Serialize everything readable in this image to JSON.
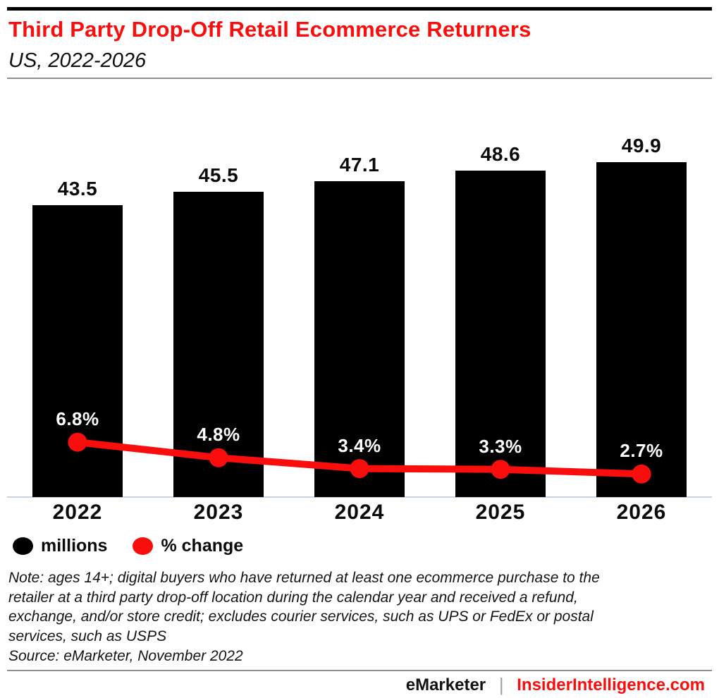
{
  "header": {
    "title": "Third Party Drop-Off Retail Ecommerce Returners",
    "subtitle": "US, 2022-2026"
  },
  "colors": {
    "accent_red": "#f90d0d",
    "bar_black": "#000000",
    "axis_line": "#c9d2df",
    "divider_gray": "#8f8f8f",
    "pipe_gray": "#a0a0a0"
  },
  "chart_data": {
    "type": "bar",
    "subtype": "bar with overlaid line (dual series)",
    "title": "Third Party Drop-Off Retail Ecommerce Returners",
    "subtitle": "US, 2022-2026",
    "categories": [
      "2022",
      "2023",
      "2024",
      "2025",
      "2026"
    ],
    "series": [
      {
        "name": "millions",
        "chart": "bar",
        "color": "#000000",
        "values": [
          43.5,
          45.5,
          47.1,
          48.6,
          49.9
        ],
        "labels": [
          "43.5",
          "45.5",
          "47.1",
          "48.6",
          "49.9"
        ]
      },
      {
        "name": "% change",
        "chart": "line",
        "color": "#f90d0d",
        "values": [
          6.8,
          4.8,
          3.4,
          3.3,
          2.7
        ],
        "labels": [
          "6.8%",
          "4.8%",
          "3.4%",
          "3.3%",
          "2.7%"
        ]
      }
    ],
    "legend": [
      {
        "label": "millions",
        "color": "#000000"
      },
      {
        "label": "% change",
        "color": "#f90d0d"
      }
    ],
    "legend_position": "bottom-left",
    "grid": false,
    "y_axis": {
      "visible": false
    },
    "x_axis": {
      "labels": [
        "2022",
        "2023",
        "2024",
        "2025",
        "2026"
      ]
    }
  },
  "notes": {
    "lines": [
      "Note: ages 14+; digital buyers who have returned at least one ecommerce purchase to the",
      "retailer at a third party drop-off location during the calendar year and received a refund,",
      "exchange, and/or store credit; excludes courier services, such as UPS or FedEx or postal",
      "services, such as USPS"
    ],
    "source": "Source: eMarketer, November 2022"
  },
  "footer": {
    "brand": "eMarketer",
    "separator": "|",
    "site": "InsiderIntelligence.com"
  }
}
